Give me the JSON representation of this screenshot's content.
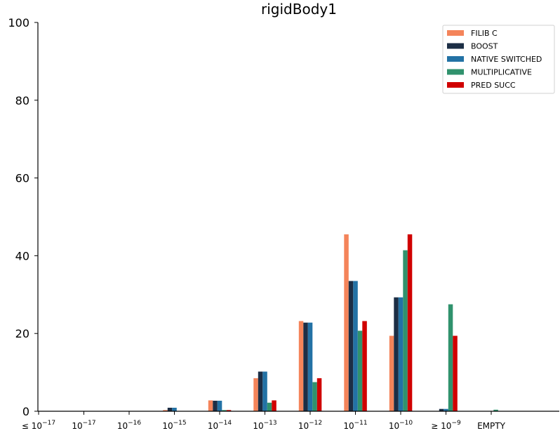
{
  "chart_data": {
    "type": "bar",
    "title": "rigidBody1",
    "xlabel": "",
    "ylabel": "",
    "ylim": [
      0,
      100
    ],
    "yticks": [
      "0",
      "20",
      "40",
      "60",
      "80",
      "100"
    ],
    "categories": [
      {
        "prefix": "≤ ",
        "base": "10",
        "exp": "−17"
      },
      {
        "prefix": "",
        "base": "10",
        "exp": "−17"
      },
      {
        "prefix": "",
        "base": "10",
        "exp": "−16"
      },
      {
        "prefix": "",
        "base": "10",
        "exp": "−15"
      },
      {
        "prefix": "",
        "base": "10",
        "exp": "−14"
      },
      {
        "prefix": "",
        "base": "10",
        "exp": "−13"
      },
      {
        "prefix": "",
        "base": "10",
        "exp": "−12"
      },
      {
        "prefix": "",
        "base": "10",
        "exp": "−11"
      },
      {
        "prefix": "",
        "base": "10",
        "exp": "−10"
      },
      {
        "prefix": "≥ ",
        "base": "10",
        "exp": "−9"
      },
      {
        "prefix": "EMPTY",
        "base": "",
        "exp": ""
      }
    ],
    "series": [
      {
        "name": "FILIB C",
        "color": "#f4845a",
        "values": [
          0,
          0,
          0,
          0.3,
          2.8,
          8.5,
          23.2,
          45.5,
          19.4,
          0,
          0
        ]
      },
      {
        "name": "BOOST",
        "color": "#1c2e45",
        "values": [
          0,
          0,
          0,
          0.9,
          2.7,
          10.2,
          22.8,
          33.5,
          29.3,
          0.6,
          0
        ]
      },
      {
        "name": "NATIVE SWITCHED",
        "color": "#2372a5",
        "values": [
          0,
          0,
          0,
          0.9,
          2.7,
          10.2,
          22.8,
          33.5,
          29.3,
          0.6,
          0
        ]
      },
      {
        "name": "MULTIPLICATIVE",
        "color": "#30926d",
        "values": [
          0,
          0,
          0,
          0,
          0.3,
          2.2,
          7.5,
          20.7,
          41.4,
          27.5,
          0.4
        ]
      },
      {
        "name": "PRED SUCC",
        "color": "#d00000",
        "values": [
          0,
          0,
          0,
          0,
          0.3,
          2.8,
          8.5,
          23.2,
          45.5,
          19.4,
          0
        ]
      }
    ],
    "legend_position": "top-right",
    "grid": false
  }
}
